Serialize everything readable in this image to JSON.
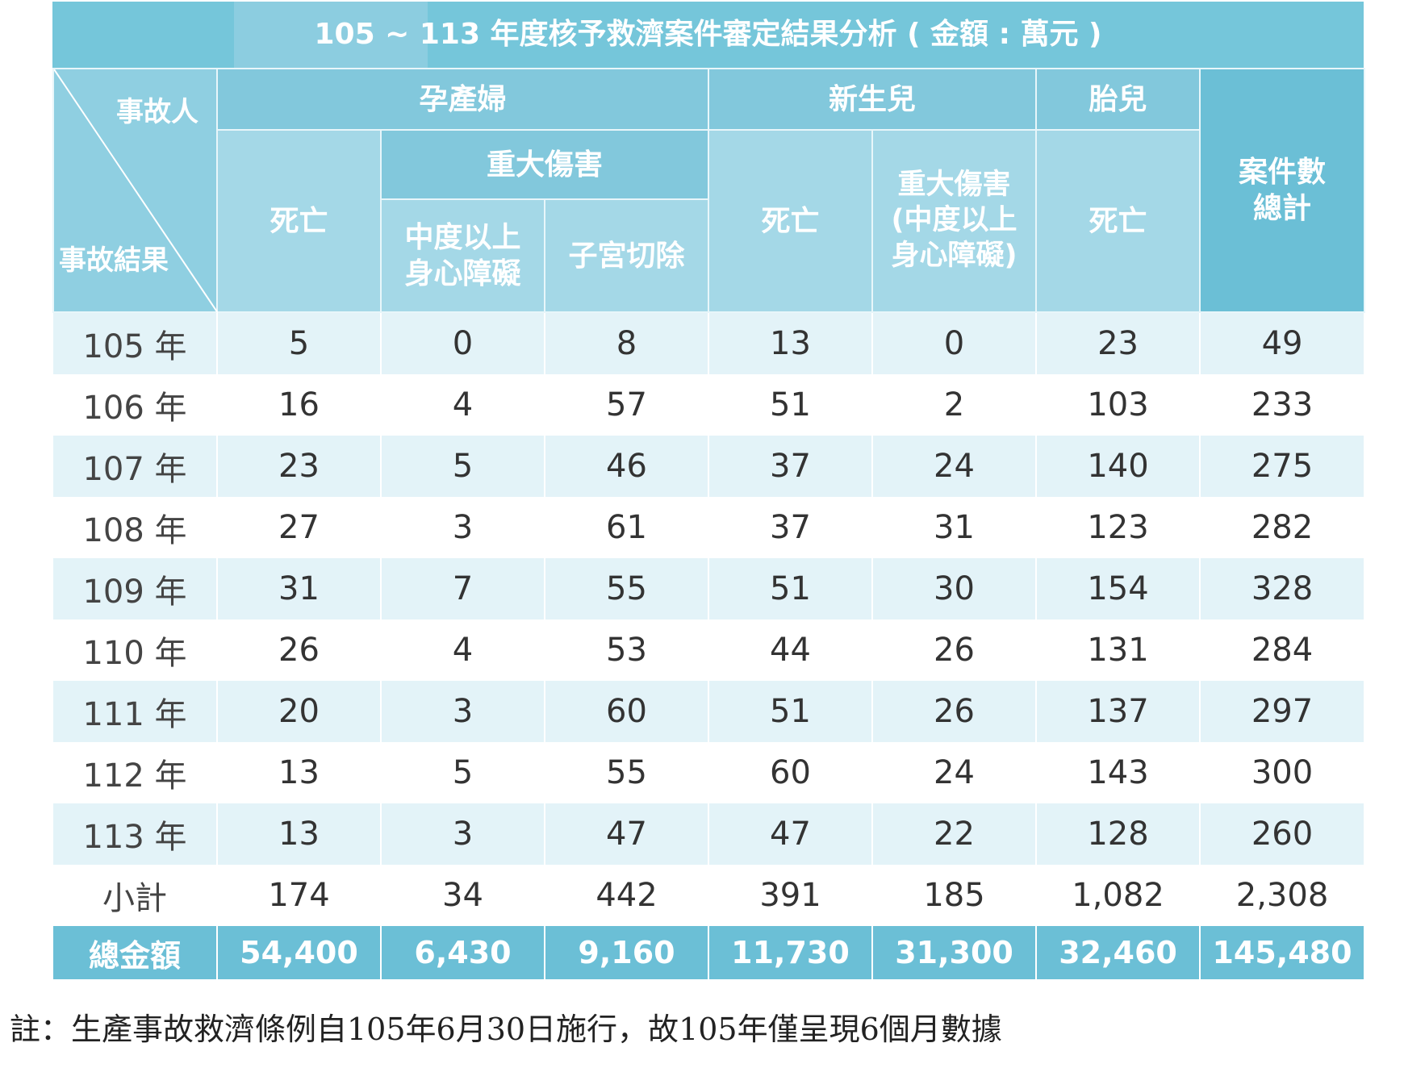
{
  "title": "105 ~ 113 年度核予救濟案件審定結果分析 ( 金額 : 萬元 )",
  "header": {
    "corner_top": "事故人",
    "corner_bottom": "事故結果",
    "group_maternal": "孕產婦",
    "group_newborn": "新生兒",
    "group_fetus": "胎兒",
    "total_cases": "案件數\n總計",
    "maternal_death": "死亡",
    "maternal_serious": "重大傷害",
    "maternal_disability": "中度以上\n身心障礙",
    "maternal_hysterectomy": "子宮切除",
    "newborn_death": "死亡",
    "newborn_serious": "重大傷害\n(中度以上\n身心障礙)",
    "fetus_death": "死亡"
  },
  "rows": [
    {
      "label": "105 年",
      "values": [
        "5",
        "0",
        "8",
        "13",
        "0",
        "23",
        "49"
      ]
    },
    {
      "label": "106 年",
      "values": [
        "16",
        "4",
        "57",
        "51",
        "2",
        "103",
        "233"
      ]
    },
    {
      "label": "107 年",
      "values": [
        "23",
        "5",
        "46",
        "37",
        "24",
        "140",
        "275"
      ]
    },
    {
      "label": "108 年",
      "values": [
        "27",
        "3",
        "61",
        "37",
        "31",
        "123",
        "282"
      ]
    },
    {
      "label": "109 年",
      "values": [
        "31",
        "7",
        "55",
        "51",
        "30",
        "154",
        "328"
      ]
    },
    {
      "label": "110 年",
      "values": [
        "26",
        "4",
        "53",
        "44",
        "26",
        "131",
        "284"
      ]
    },
    {
      "label": "111 年",
      "values": [
        "20",
        "3",
        "60",
        "51",
        "26",
        "137",
        "297"
      ]
    },
    {
      "label": "112 年",
      "values": [
        "13",
        "5",
        "55",
        "60",
        "24",
        "143",
        "300"
      ]
    },
    {
      "label": "113 年",
      "values": [
        "13",
        "3",
        "47",
        "47",
        "22",
        "128",
        "260"
      ]
    },
    {
      "label": "小計",
      "values": [
        "174",
        "34",
        "442",
        "391",
        "185",
        "1,082",
        "2,308"
      ]
    }
  ],
  "total": {
    "label": "總金額",
    "values": [
      "54,400",
      "6,430",
      "9,160",
      "11,730",
      "31,300",
      "32,460",
      "145,480"
    ]
  },
  "note": "註：生產事故救濟條例自105年6月30日施行，故105年僅呈現6個月數據",
  "colors": {
    "header": "#82c8dc",
    "header_dark": "#6bbfd6",
    "row_shade": "#e3f3f8"
  }
}
